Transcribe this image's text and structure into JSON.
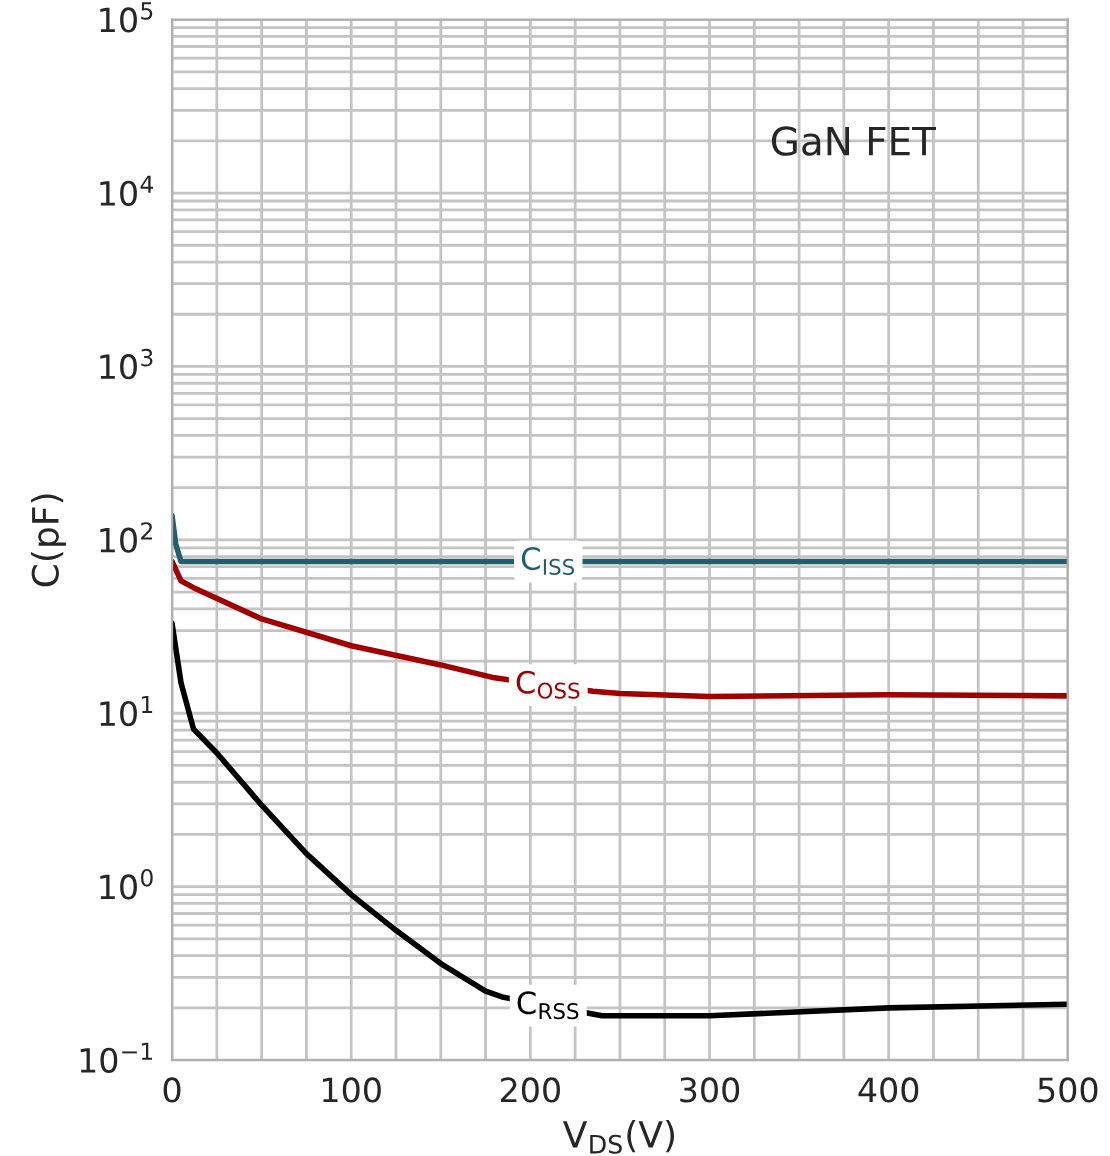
{
  "chart_data": {
    "type": "line",
    "xlabel": "V$_{DS}$(V)",
    "ylabel": "C(pF)",
    "log": "y",
    "grid": true,
    "line_style": "solid",
    "marker": "none",
    "xlim": [
      0,
      500
    ],
    "ylim": [
      0.1,
      100000
    ],
    "xticks": [
      0,
      {
        "value": 25,
        "label": null
      },
      {
        "value": 50,
        "label": null
      },
      {
        "value": 75,
        "label": null
      },
      100,
      {
        "value": 125,
        "label": null
      },
      {
        "value": 150,
        "label": null
      },
      {
        "value": 175,
        "label": null
      },
      200,
      {
        "value": 225,
        "label": null
      },
      {
        "value": 250,
        "label": null
      },
      {
        "value": 275,
        "label": null
      },
      300,
      {
        "value": 325,
        "label": null
      },
      {
        "value": 350,
        "label": null
      },
      {
        "value": 375,
        "label": null
      },
      400,
      {
        "value": 425,
        "label": null
      },
      {
        "value": 450,
        "label": null
      },
      {
        "value": 475,
        "label": null
      },
      500
    ],
    "yticks": [
      {
        "value": 0.1,
        "label": "10$^{−1}$"
      },
      {
        "value": 0.2,
        "label": null
      },
      {
        "value": 0.3,
        "label": null
      },
      {
        "value": 0.4,
        "label": null
      },
      {
        "value": 0.5,
        "label": null
      },
      {
        "value": 0.6,
        "label": null
      },
      {
        "value": 0.7,
        "label": null
      },
      {
        "value": 0.8,
        "label": null
      },
      {
        "value": 0.9,
        "label": null
      },
      {
        "value": 1,
        "label": "10$^{0}$"
      },
      {
        "value": 2,
        "label": null
      },
      {
        "value": 3,
        "label": null
      },
      {
        "value": 4,
        "label": null
      },
      {
        "value": 5,
        "label": null
      },
      {
        "value": 6,
        "label": null
      },
      {
        "value": 7,
        "label": null
      },
      {
        "value": 8,
        "label": null
      },
      {
        "value": 9,
        "label": null
      },
      {
        "value": 10,
        "label": "10$^{1}$"
      },
      {
        "value": 20,
        "label": null
      },
      {
        "value": 30,
        "label": null
      },
      {
        "value": 40,
        "label": null
      },
      {
        "value": 50,
        "label": null
      },
      {
        "value": 60,
        "label": null
      },
      {
        "value": 70,
        "label": null
      },
      {
        "value": 80,
        "label": null
      },
      {
        "value": 90,
        "label": null
      },
      {
        "value": 100,
        "label": "10$^{2}$"
      },
      {
        "value": 200,
        "label": null
      },
      {
        "value": 300,
        "label": null
      },
      {
        "value": 400,
        "label": null
      },
      {
        "value": 500,
        "label": null
      },
      {
        "value": 600,
        "label": null
      },
      {
        "value": 700,
        "label": null
      },
      {
        "value": 800,
        "label": null
      },
      {
        "value": 900,
        "label": null
      },
      {
        "value": 1000,
        "label": "10$^{3}$"
      },
      {
        "value": 2000,
        "label": null
      },
      {
        "value": 3000,
        "label": null
      },
      {
        "value": 4000,
        "label": null
      },
      {
        "value": 5000,
        "label": null
      },
      {
        "value": 6000,
        "label": null
      },
      {
        "value": 7000,
        "label": null
      },
      {
        "value": 8000,
        "label": null
      },
      {
        "value": 9000,
        "label": null
      },
      {
        "value": 10000,
        "label": "10$^{4}$"
      },
      {
        "value": 20000,
        "label": null
      },
      {
        "value": 30000,
        "label": null
      },
      {
        "value": 40000,
        "label": null
      },
      {
        "value": 50000,
        "label": null
      },
      {
        "value": 60000,
        "label": null
      },
      {
        "value": 70000,
        "label": null
      },
      {
        "value": 80000,
        "label": null
      },
      {
        "value": 90000,
        "label": null
      },
      {
        "value": 100000,
        "label": "10$^{5}$"
      }
    ],
    "series": [
      {
        "name": "C$_{ISS}$",
        "color": "#1f5f6e",
        "x": [
          0,
          2,
          5,
          10,
          50,
          100,
          175,
          240,
          300,
          400,
          500
        ],
        "values": [
          138,
          95,
          75,
          75,
          75,
          75,
          75,
          75,
          75,
          75,
          75
        ]
      },
      {
        "name": "C$_{OSS}$",
        "color": "#a00000",
        "x": [
          0,
          5,
          12,
          50,
          100,
          150,
          180,
          235,
          250,
          300,
          400,
          500
        ],
        "values": [
          75,
          58,
          53,
          35,
          24.5,
          19,
          16,
          13.4,
          13,
          12.5,
          12.8,
          12.6
        ]
      },
      {
        "name": "C$_{RSS}$",
        "color": "#000000",
        "x": [
          0,
          5,
          12,
          25,
          50,
          75,
          100,
          125,
          150,
          175,
          185,
          240,
          300,
          400,
          500
        ],
        "values": [
          33,
          15,
          8.1,
          5.9,
          2.95,
          1.55,
          0.9,
          0.56,
          0.36,
          0.25,
          0.23,
          0.18,
          0.18,
          0.2,
          0.21
        ]
      }
    ],
    "annotations": [
      "GaN FET"
    ]
  }
}
